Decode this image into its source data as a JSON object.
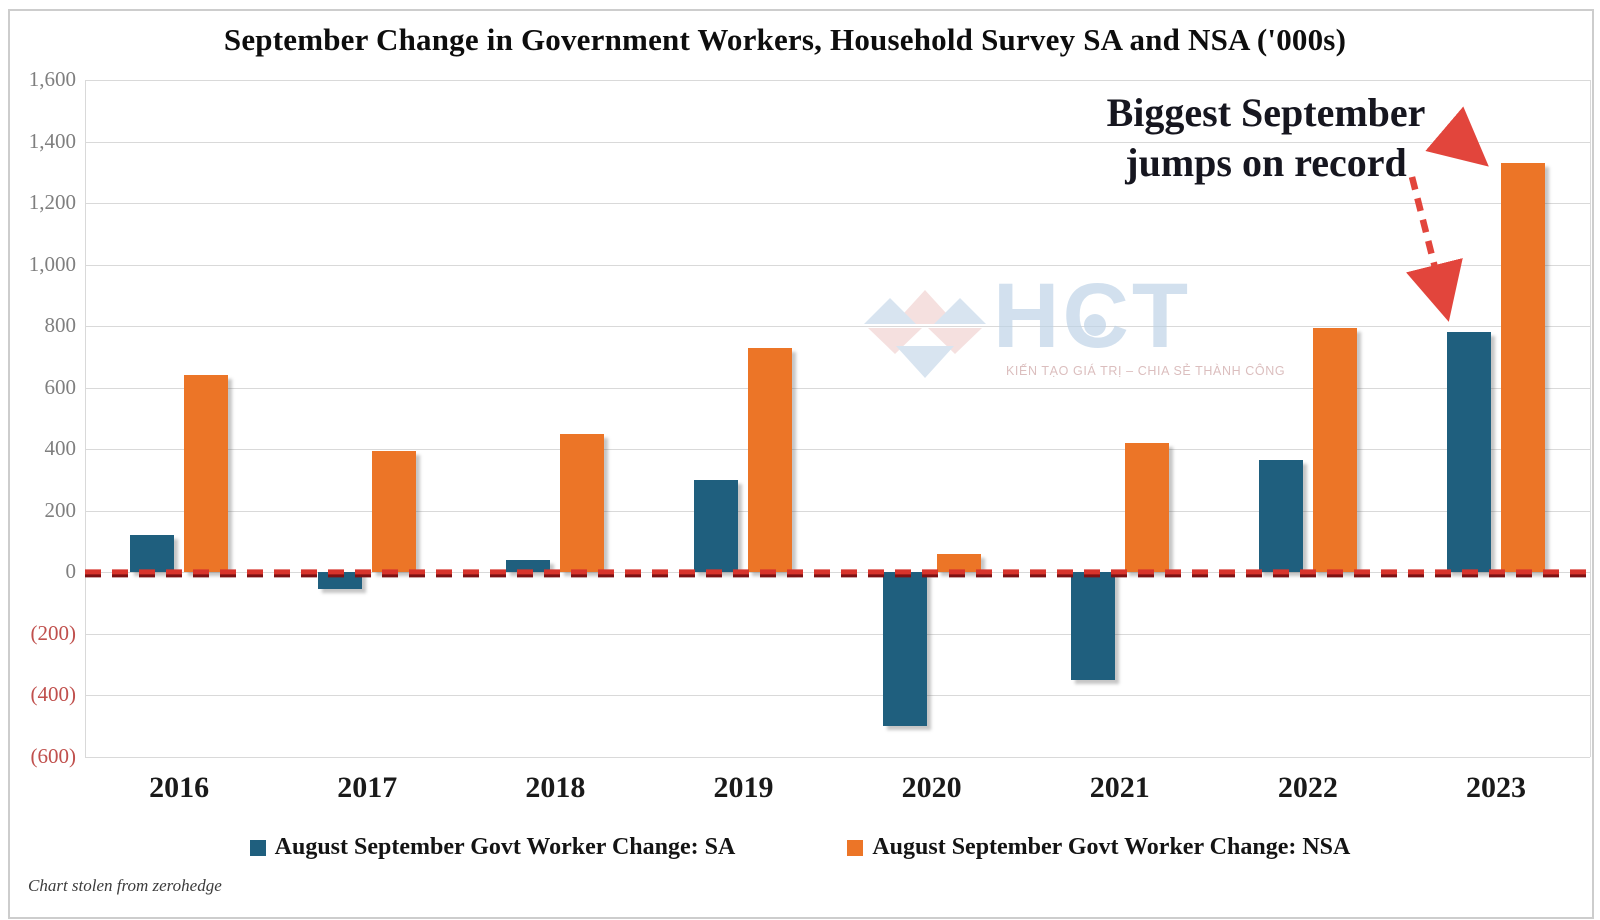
{
  "title": "September Change in Government Workers, Household Survey SA and NSA ('000s)",
  "chart_data": {
    "type": "bar",
    "title": "September Change in Government Workers, Household Survey SA and NSA ('000s)",
    "categories": [
      "2016",
      "2017",
      "2018",
      "2019",
      "2020",
      "2021",
      "2022",
      "2023"
    ],
    "series": [
      {
        "name": "August September Govt Worker Change: SA",
        "color": "#1f5f7e",
        "values": [
          120,
          -55,
          40,
          300,
          -500,
          -350,
          365,
          780
        ]
      },
      {
        "name": "August September Govt Worker Change: NSA",
        "color": "#ec7527",
        "values": [
          640,
          395,
          450,
          730,
          60,
          420,
          795,
          1330
        ]
      }
    ],
    "xlabel": "",
    "ylabel": "",
    "ylim": [
      -600,
      1600
    ],
    "ytick_step": 200,
    "y_tick_labels": [
      "1,600",
      "1,400",
      "1,200",
      "1,000",
      "800",
      "600",
      "400",
      "200",
      "0",
      "(200)",
      "(400)",
      "(600)"
    ],
    "grid": true,
    "legend_position": "bottom",
    "zero_line": {
      "style": "dashed",
      "color_bright": "#d8342c",
      "color_dark": "#7e1113"
    },
    "annotation": "Biggest September jumps on record"
  },
  "annotation": {
    "line1": "Biggest September",
    "line2": "jumps on record",
    "arrow_color": "#e2453c"
  },
  "watermark": {
    "brand": "HCT",
    "tagline": "KIẾN TẠO GIÁ TRỊ – CHIA SẺ THÀNH CÔNG",
    "gem_blue": "#b9cfe4",
    "gem_pink": "#eec7c5"
  },
  "legend": {
    "sa_label": "August September Govt Worker Change: SA",
    "nsa_label": "August September Govt Worker Change: NSA"
  },
  "footer": {
    "note": "Chart stolen from zerohedge"
  },
  "colors": {
    "sa_bar": "#1f5f7e",
    "nsa_bar": "#ec7527",
    "gridline": "#d9d9d9",
    "y_tick": "#7f7f7f",
    "y_tick_negative": "#c0504d"
  }
}
